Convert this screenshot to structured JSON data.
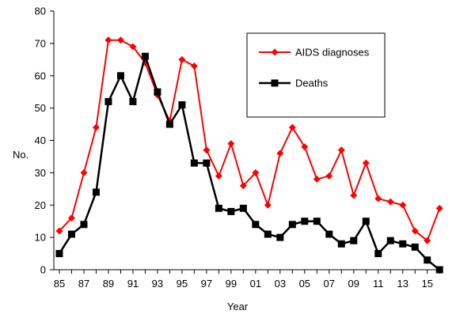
{
  "chart_data": {
    "type": "line",
    "title": "",
    "xlabel": "Year",
    "ylabel": "No.",
    "ylim": [
      0,
      80
    ],
    "yticks": [
      0,
      10,
      20,
      30,
      40,
      50,
      60,
      70,
      80
    ],
    "xticks": [
      "85",
      "87",
      "89",
      "91",
      "93",
      "95",
      "97",
      "99",
      "01",
      "03",
      "05",
      "07",
      "09",
      "11",
      "13",
      "15"
    ],
    "x": [
      "1985",
      "1986",
      "1987",
      "1988",
      "1989",
      "1990",
      "1991",
      "1992",
      "1993",
      "1994",
      "1995",
      "1996",
      "1997",
      "1998",
      "1999",
      "2000",
      "2001",
      "2002",
      "2003",
      "2004",
      "2005",
      "2006",
      "2007",
      "2008",
      "2009",
      "2010",
      "2011",
      "2012",
      "2013",
      "2014",
      "2015",
      "2016"
    ],
    "grid": false,
    "legend_position": "top-right",
    "series": [
      {
        "name": "AIDS diagnoses",
        "color": "#ff0000",
        "marker": "diamond",
        "values": [
          12,
          16,
          30,
          44,
          71,
          71,
          69,
          64,
          54,
          46,
          65,
          63,
          37,
          29,
          39,
          26,
          30,
          20,
          36,
          44,
          38,
          28,
          29,
          37,
          23,
          33,
          22,
          21,
          20,
          12,
          9,
          19
        ]
      },
      {
        "name": "Deaths",
        "color": "#000000",
        "marker": "square",
        "values": [
          5,
          11,
          14,
          24,
          52,
          60,
          52,
          66,
          55,
          45,
          51,
          33,
          33,
          19,
          18,
          19,
          14,
          11,
          10,
          14,
          15,
          15,
          11,
          8,
          9,
          15,
          5,
          9,
          8,
          7,
          3,
          0
        ]
      }
    ]
  }
}
